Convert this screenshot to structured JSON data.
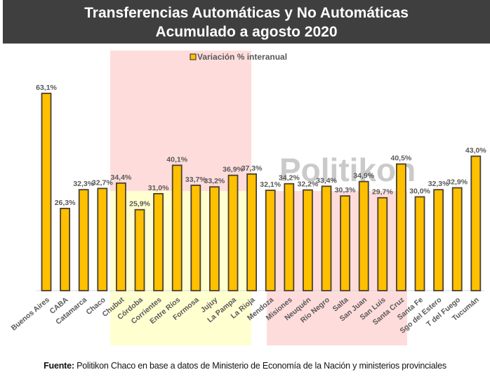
{
  "header": {
    "title_line1": "Transferencias Automáticas y No Automáticas",
    "title_line2": "Acumulado a agosto 2020"
  },
  "watermark": "Politikon",
  "footer": {
    "label": "Fuente:",
    "text": " Politikon Chaco en base a datos de Ministerio de Economía de la Nación y ministerios provinciales"
  },
  "colors": {
    "bar_fill": "#ffc000",
    "bar_stroke": "#4a4030",
    "title_bg": "#3f3f3f",
    "highlight_pink": "#ffdcdc",
    "highlight_yellow": "#ffffd0",
    "label_color": "#595959"
  },
  "chart_data": {
    "type": "bar",
    "title": "Transferencias Automáticas y No Automáticas — Acumulado a agosto 2020",
    "xlabel": "",
    "ylabel": "",
    "ylim": [
      0,
      63.1
    ],
    "grid": false,
    "legend": {
      "position": "top-center",
      "entries": [
        "Variación % interanual"
      ]
    },
    "categories": [
      "Buenos Aires",
      "CABA",
      "Catamarca",
      "Chaco",
      "Chubut",
      "Córdoba",
      "Corrientes",
      "Entre Ríos",
      "Formosa",
      "Jujuy",
      "La Pampa",
      "La Rioja",
      "Mendoza",
      "Misiones",
      "Neuquén",
      "Río Negro",
      "Salta",
      "San Juan",
      "San Luis",
      "Santa Cruz",
      "Santa Fe",
      "Sgo del Estero",
      "T del Fuego",
      "Tucumán"
    ],
    "series": [
      {
        "name": "Variación % interanual",
        "values": [
          63.1,
          26.3,
          32.3,
          32.7,
          34.4,
          25.9,
          31.0,
          40.1,
          33.7,
          33.2,
          36.9,
          37.3,
          32.1,
          34.2,
          32.2,
          33.4,
          30.3,
          34.9,
          29.7,
          40.5,
          30.0,
          32.3,
          32.9,
          43.0
        ],
        "labels": [
          "63,1%",
          "26,3%",
          "32,3%",
          "32,7%",
          "34,4%",
          "25,9%",
          "31,0%",
          "40,1%",
          "33,7%",
          "33,2%",
          "36,9%",
          "37,3%",
          "32,1%",
          "34,2%",
          "32,2%",
          "33,4%",
          "30,3%",
          "34,9%",
          "29,7%",
          "40,5%",
          "30,0%",
          "32,3%",
          "32,9%",
          "43,0%"
        ]
      }
    ],
    "highlight_regions": [
      {
        "name": "group-a",
        "from": "Chubut",
        "to": "La Rioja"
      },
      {
        "name": "group-b",
        "from": "Misiones",
        "to": "Santa Cruz"
      }
    ]
  }
}
